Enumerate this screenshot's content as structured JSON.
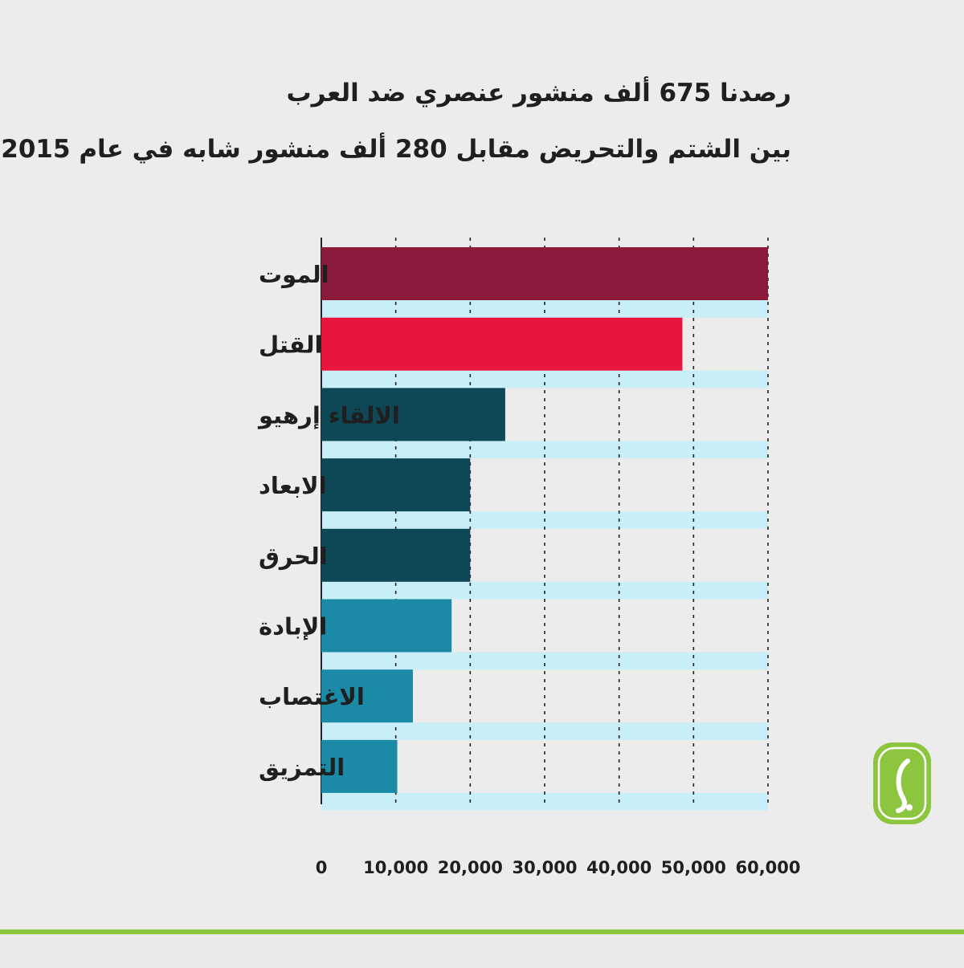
{
  "header": {
    "title_line1": "رصدنا 675 ألف منشور عنصري ضد العرب",
    "title_line2": "بين الشتم والتحريض مقابل 280 ألف منشور شابه في عام 2015"
  },
  "chart_data": {
    "type": "bar",
    "orientation": "horizontal",
    "categories": [
      "الموت",
      "القتل",
      "الالقاء إرهيو",
      "الابعاد",
      "الحرق",
      "الإبادة",
      "الاغتصاب",
      "التمزيق"
    ],
    "values": [
      60000,
      48500,
      24700,
      20000,
      20000,
      17500,
      12300,
      10200
    ],
    "colors": [
      "#8c1a3a",
      "#e8163e",
      "#0e4755",
      "#0e4755",
      "#0e4755",
      "#1b8aa6",
      "#1b8aa6",
      "#1b8aa6"
    ],
    "band_color": "#c8eef7",
    "tick_labels": [
      "0",
      "10,000",
      "20,000",
      "30,000",
      "40,000",
      "50,000",
      "60,000"
    ],
    "xlim": [
      0,
      60000
    ],
    "grid": "vertical dashed",
    "legend": "none"
  }
}
